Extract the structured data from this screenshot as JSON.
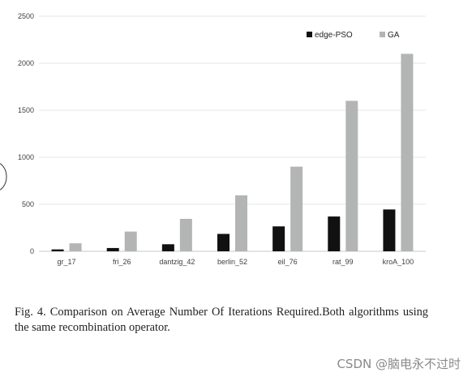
{
  "chart_data": {
    "type": "bar",
    "categories": [
      "gr_17",
      "fri_26",
      "dantzig_42",
      "berlin_52",
      "eil_76",
      "rat_99",
      "kroA_100"
    ],
    "series": [
      {
        "name": "edge-PSO",
        "color": "#111111",
        "values": [
          20,
          35,
          75,
          185,
          265,
          370,
          445
        ]
      },
      {
        "name": "GA",
        "color": "#b3b5b4",
        "values": [
          85,
          210,
          345,
          595,
          900,
          1600,
          2100
        ]
      }
    ],
    "yticks": [
      0,
      500,
      1000,
      1500,
      2000,
      2500
    ],
    "ylim": [
      0,
      2500
    ],
    "grid": true,
    "legend": "top-right"
  },
  "caption": {
    "text": "Fig. 4.  Comparison on Average Number Of Iterations Required.Both algorithms using the same recombination operator."
  },
  "watermark": {
    "text": "CSDN @脑电永不过时"
  }
}
